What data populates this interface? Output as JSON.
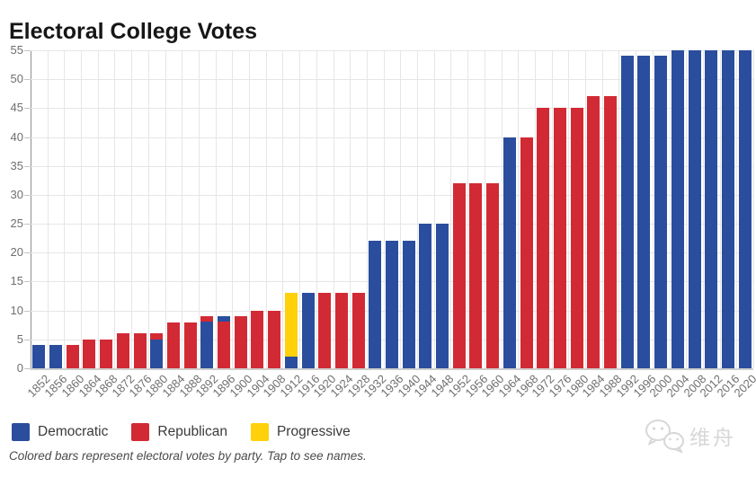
{
  "caption": "Colored bars represent electoral votes by party. Tap to see names.",
  "watermark": {
    "text": "维舟",
    "icon": "wechat-icon"
  },
  "legend": {
    "items": [
      {
        "label": "Democratic",
        "color": "#2a4d9d"
      },
      {
        "label": "Republican",
        "color": "#d22a34"
      },
      {
        "label": "Progressive",
        "color": "#fed10b"
      }
    ]
  },
  "colors": {
    "grid": "#e6e6e6",
    "y_axis_line": "#8f8f8f",
    "x_axis_line": "#cfcfcf",
    "tick_label": "#6f6f6f"
  },
  "chart_data": {
    "type": "bar",
    "stacked": true,
    "title": "Electoral College Votes",
    "xlabel": "",
    "ylabel": "",
    "ylim": [
      0,
      55
    ],
    "y_ticks": [
      0,
      5,
      10,
      15,
      20,
      25,
      30,
      35,
      40,
      45,
      50,
      55
    ],
    "grid": true,
    "legend_position": "bottom-left",
    "parties": {
      "D": {
        "name": "Democratic",
        "color": "#2a4d9d"
      },
      "R": {
        "name": "Republican",
        "color": "#d22a34"
      },
      "P": {
        "name": "Progressive",
        "color": "#fed10b"
      }
    },
    "categories": [
      "1852",
      "1856",
      "1860",
      "1864",
      "1868",
      "1872",
      "1876",
      "1880",
      "1884",
      "1888",
      "1892",
      "1896",
      "1900",
      "1904",
      "1908",
      "1912",
      "1916",
      "1920",
      "1924",
      "1928",
      "1932",
      "1936",
      "1940",
      "1944",
      "1948",
      "1952",
      "1956",
      "1960",
      "1964",
      "1968",
      "1972",
      "1976",
      "1980",
      "1984",
      "1988",
      "1992",
      "1996",
      "2000",
      "2004",
      "2008",
      "2012",
      "2016",
      "2020"
    ],
    "bars": [
      {
        "year": "1852",
        "segments": [
          {
            "party": "D",
            "votes": 4
          }
        ]
      },
      {
        "year": "1856",
        "segments": [
          {
            "party": "D",
            "votes": 4
          }
        ]
      },
      {
        "year": "1860",
        "segments": [
          {
            "party": "R",
            "votes": 4
          }
        ]
      },
      {
        "year": "1864",
        "segments": [
          {
            "party": "R",
            "votes": 5
          }
        ]
      },
      {
        "year": "1868",
        "segments": [
          {
            "party": "R",
            "votes": 5
          }
        ]
      },
      {
        "year": "1872",
        "segments": [
          {
            "party": "R",
            "votes": 6
          }
        ]
      },
      {
        "year": "1876",
        "segments": [
          {
            "party": "R",
            "votes": 6
          }
        ]
      },
      {
        "year": "1880",
        "segments": [
          {
            "party": "D",
            "votes": 5
          },
          {
            "party": "R",
            "votes": 1
          }
        ]
      },
      {
        "year": "1884",
        "segments": [
          {
            "party": "R",
            "votes": 8
          }
        ]
      },
      {
        "year": "1888",
        "segments": [
          {
            "party": "R",
            "votes": 8
          }
        ]
      },
      {
        "year": "1892",
        "segments": [
          {
            "party": "D",
            "votes": 8
          },
          {
            "party": "R",
            "votes": 1
          }
        ]
      },
      {
        "year": "1896",
        "segments": [
          {
            "party": "R",
            "votes": 8
          },
          {
            "party": "D",
            "votes": 1
          }
        ]
      },
      {
        "year": "1900",
        "segments": [
          {
            "party": "R",
            "votes": 9
          }
        ]
      },
      {
        "year": "1904",
        "segments": [
          {
            "party": "R",
            "votes": 10
          }
        ]
      },
      {
        "year": "1908",
        "segments": [
          {
            "party": "R",
            "votes": 10
          }
        ]
      },
      {
        "year": "1912",
        "segments": [
          {
            "party": "D",
            "votes": 2
          },
          {
            "party": "P",
            "votes": 11
          }
        ]
      },
      {
        "year": "1916",
        "segments": [
          {
            "party": "D",
            "votes": 13
          }
        ]
      },
      {
        "year": "1920",
        "segments": [
          {
            "party": "R",
            "votes": 13
          }
        ]
      },
      {
        "year": "1924",
        "segments": [
          {
            "party": "R",
            "votes": 13
          }
        ]
      },
      {
        "year": "1928",
        "segments": [
          {
            "party": "R",
            "votes": 13
          }
        ]
      },
      {
        "year": "1932",
        "segments": [
          {
            "party": "D",
            "votes": 22
          }
        ]
      },
      {
        "year": "1936",
        "segments": [
          {
            "party": "D",
            "votes": 22
          }
        ]
      },
      {
        "year": "1940",
        "segments": [
          {
            "party": "D",
            "votes": 22
          }
        ]
      },
      {
        "year": "1944",
        "segments": [
          {
            "party": "D",
            "votes": 25
          }
        ]
      },
      {
        "year": "1948",
        "segments": [
          {
            "party": "D",
            "votes": 25
          }
        ]
      },
      {
        "year": "1952",
        "segments": [
          {
            "party": "R",
            "votes": 32
          }
        ]
      },
      {
        "year": "1956",
        "segments": [
          {
            "party": "R",
            "votes": 32
          }
        ]
      },
      {
        "year": "1960",
        "segments": [
          {
            "party": "R",
            "votes": 32
          }
        ]
      },
      {
        "year": "1964",
        "segments": [
          {
            "party": "D",
            "votes": 40
          }
        ]
      },
      {
        "year": "1968",
        "segments": [
          {
            "party": "R",
            "votes": 40
          }
        ]
      },
      {
        "year": "1972",
        "segments": [
          {
            "party": "R",
            "votes": 45
          }
        ]
      },
      {
        "year": "1976",
        "segments": [
          {
            "party": "R",
            "votes": 45
          }
        ]
      },
      {
        "year": "1980",
        "segments": [
          {
            "party": "R",
            "votes": 45
          }
        ]
      },
      {
        "year": "1984",
        "segments": [
          {
            "party": "R",
            "votes": 47
          }
        ]
      },
      {
        "year": "1988",
        "segments": [
          {
            "party": "R",
            "votes": 47
          }
        ]
      },
      {
        "year": "1992",
        "segments": [
          {
            "party": "D",
            "votes": 54
          }
        ]
      },
      {
        "year": "1996",
        "segments": [
          {
            "party": "D",
            "votes": 54
          }
        ]
      },
      {
        "year": "2000",
        "segments": [
          {
            "party": "D",
            "votes": 54
          }
        ]
      },
      {
        "year": "2004",
        "segments": [
          {
            "party": "D",
            "votes": 55
          }
        ]
      },
      {
        "year": "2008",
        "segments": [
          {
            "party": "D",
            "votes": 55
          }
        ]
      },
      {
        "year": "2012",
        "segments": [
          {
            "party": "D",
            "votes": 55
          }
        ]
      },
      {
        "year": "2016",
        "segments": [
          {
            "party": "D",
            "votes": 55
          }
        ]
      },
      {
        "year": "2020",
        "segments": [
          {
            "party": "D",
            "votes": 55
          }
        ]
      }
    ]
  }
}
